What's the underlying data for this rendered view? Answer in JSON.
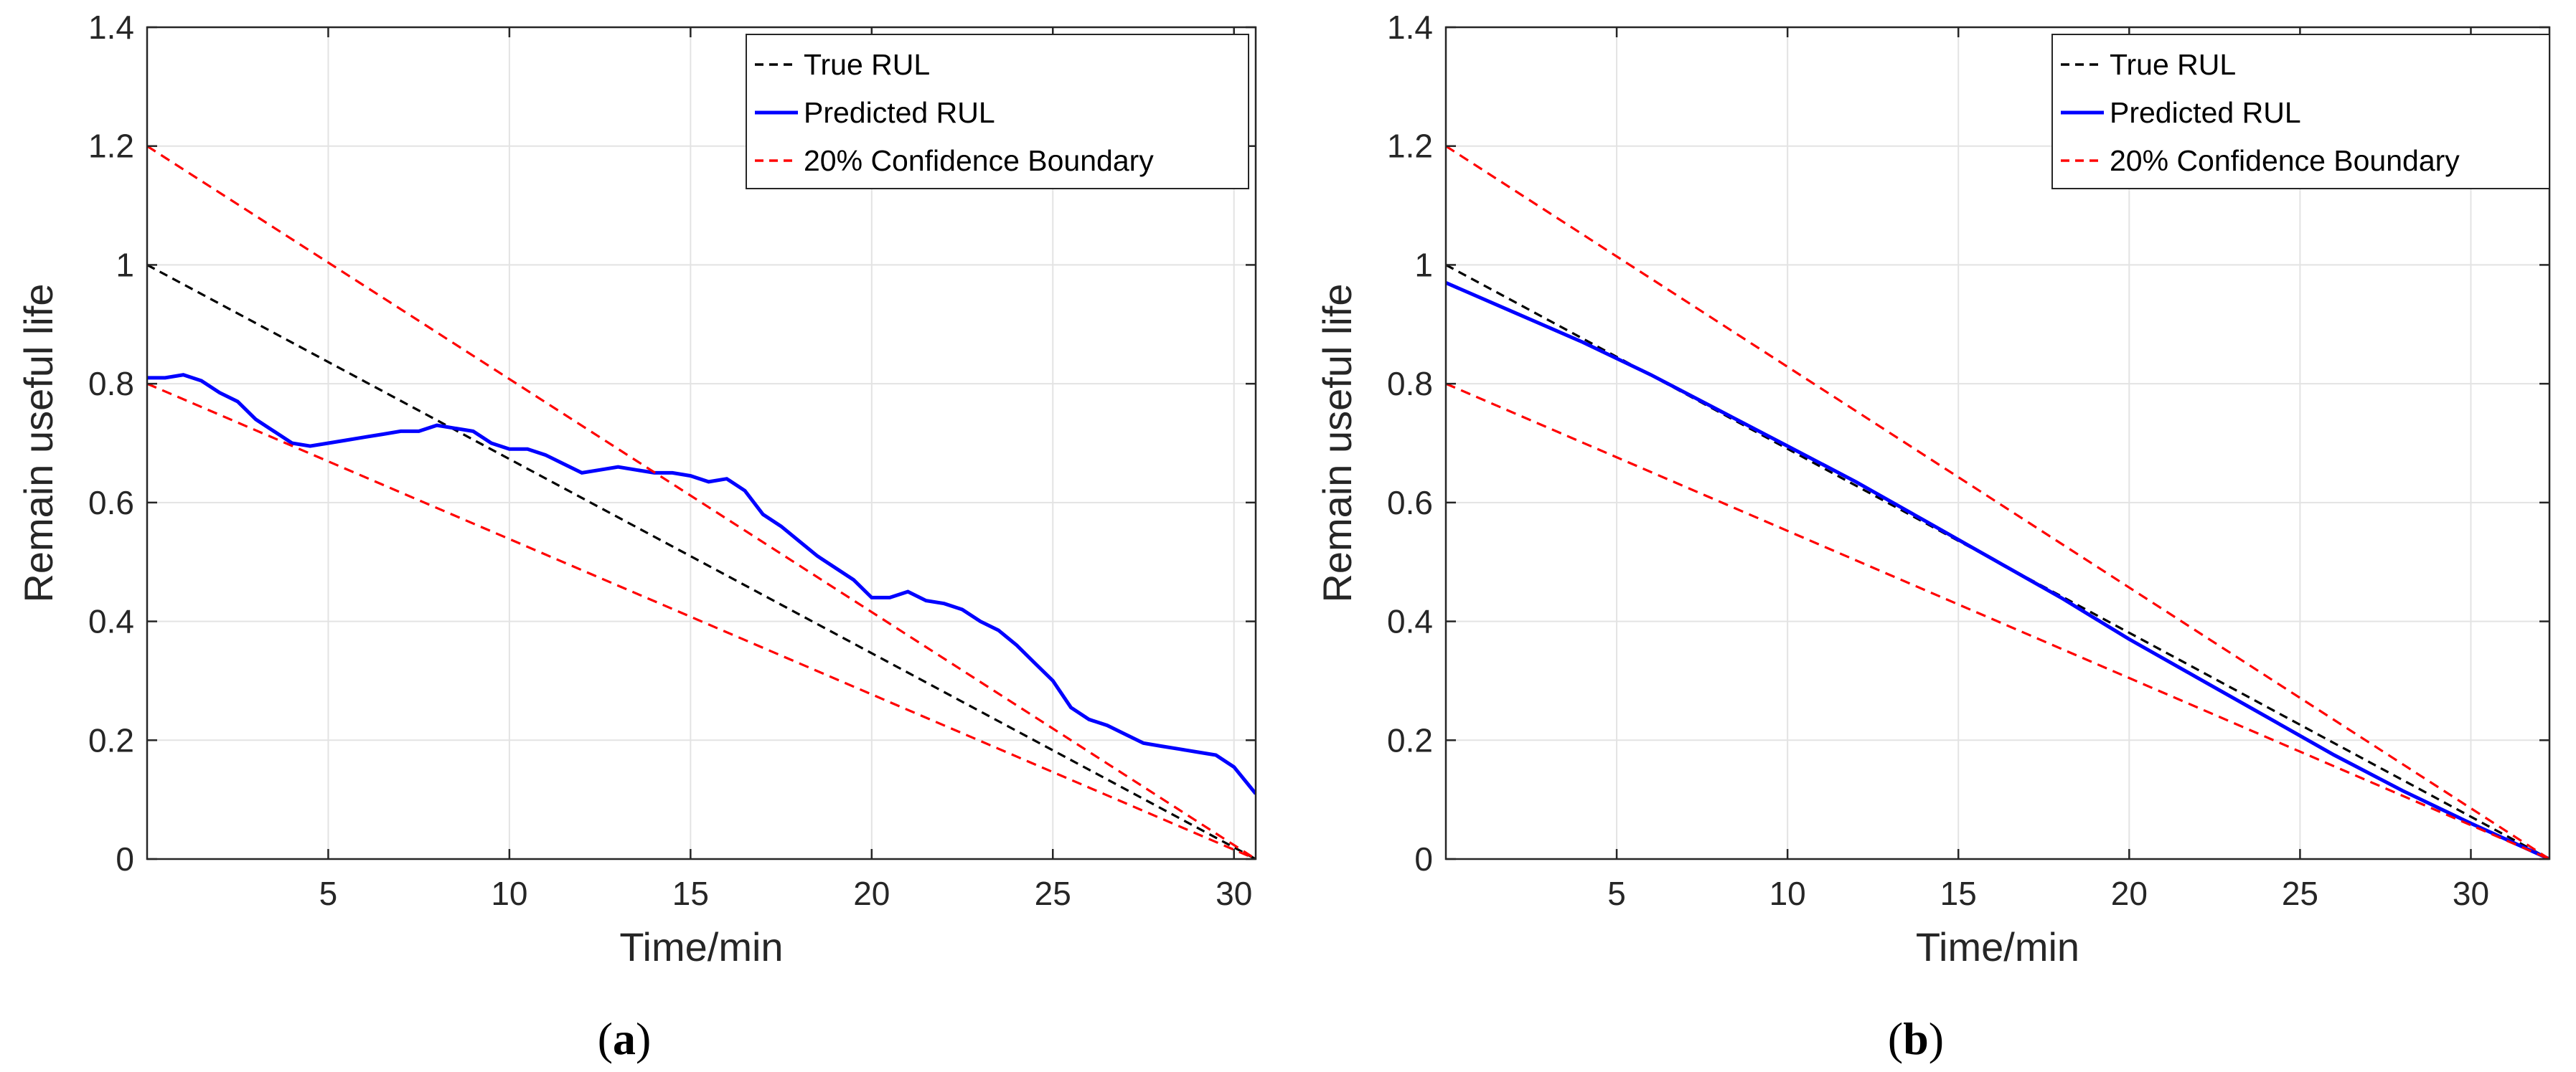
{
  "chart_data": [
    {
      "type": "line",
      "caption": "a",
      "xlabel": "Time/min",
      "ylabel": "Remain useful life",
      "xlim": [
        0,
        30.6
      ],
      "ylim": [
        0,
        1.4
      ],
      "xticks": [
        5,
        10,
        15,
        20,
        25,
        30
      ],
      "yticks": [
        0,
        0.2,
        0.4,
        0.6,
        0.8,
        1,
        1.2,
        1.4
      ],
      "ytick_labels": [
        "0",
        "0.2",
        "0.4",
        "0.6",
        "0.8",
        "1",
        "1.2",
        "1.4"
      ],
      "grid": true,
      "legend_position": "top-right",
      "series": [
        {
          "name": "True RUL",
          "color": "#000000",
          "style": "dashed",
          "x": [
            0,
            30.6
          ],
          "y": [
            1.0,
            0.0
          ]
        },
        {
          "name": "Predicted RUL",
          "color": "#0000ff",
          "style": "solid",
          "x": [
            0,
            0.5,
            1,
            1.5,
            2,
            2.5,
            3,
            3.5,
            4,
            4.5,
            5,
            5.5,
            6,
            6.5,
            7,
            7.5,
            8,
            8.5,
            9,
            9.5,
            10,
            10.5,
            11,
            11.5,
            12,
            12.5,
            13,
            13.5,
            14,
            14.5,
            15,
            15.5,
            16,
            16.5,
            17,
            17.5,
            18,
            18.5,
            19,
            19.5,
            20,
            20.5,
            21,
            21.5,
            22,
            22.5,
            23,
            23.5,
            24,
            24.5,
            25,
            25.5,
            26,
            26.5,
            27,
            27.5,
            28,
            28.5,
            29,
            29.5,
            30,
            30.6
          ],
          "y": [
            0.81,
            0.81,
            0.815,
            0.805,
            0.785,
            0.77,
            0.74,
            0.72,
            0.7,
            0.695,
            0.7,
            0.705,
            0.71,
            0.715,
            0.72,
            0.72,
            0.73,
            0.725,
            0.72,
            0.7,
            0.69,
            0.69,
            0.68,
            0.665,
            0.65,
            0.655,
            0.66,
            0.655,
            0.65,
            0.65,
            0.645,
            0.635,
            0.64,
            0.62,
            0.58,
            0.56,
            0.535,
            0.51,
            0.49,
            0.47,
            0.44,
            0.44,
            0.45,
            0.435,
            0.43,
            0.42,
            0.4,
            0.385,
            0.36,
            0.33,
            0.3,
            0.255,
            0.235,
            0.225,
            0.21,
            0.195,
            0.19,
            0.185,
            0.18,
            0.175,
            0.155,
            0.11
          ]
        },
        {
          "name": "20% Confidence Boundary",
          "color": "#ff0000",
          "style": "dashed",
          "x": [
            0,
            30.6
          ],
          "y": [
            1.2,
            0.0
          ]
        },
        {
          "name": "",
          "color": "#ff0000",
          "style": "dashed",
          "x": [
            0,
            30.6
          ],
          "y": [
            0.8,
            0.0
          ]
        }
      ]
    },
    {
      "type": "line",
      "caption": "b",
      "xlabel": "Time/min",
      "ylabel": "Remain useful life",
      "xlim": [
        0,
        32.3
      ],
      "ylim": [
        0,
        1.4
      ],
      "xticks": [
        5,
        10,
        15,
        20,
        25,
        30
      ],
      "yticks": [
        0,
        0.2,
        0.4,
        0.6,
        0.8,
        1,
        1.2,
        1.4
      ],
      "ytick_labels": [
        "0",
        "0.2",
        "0.4",
        "0.6",
        "0.8",
        "1",
        "1.2",
        "1.4"
      ],
      "grid": true,
      "legend_position": "top-right",
      "series": [
        {
          "name": "True RUL",
          "color": "#000000",
          "style": "dashed",
          "x": [
            0,
            32.3
          ],
          "y": [
            1.0,
            0.0
          ]
        },
        {
          "name": "Predicted RUL",
          "color": "#0000ff",
          "style": "solid",
          "x": [
            0,
            2,
            4,
            6,
            8,
            10,
            12,
            14,
            16,
            18,
            20,
            22,
            24,
            26,
            28,
            30,
            32.3
          ],
          "y": [
            0.97,
            0.92,
            0.87,
            0.815,
            0.755,
            0.695,
            0.635,
            0.57,
            0.505,
            0.44,
            0.37,
            0.305,
            0.24,
            0.175,
            0.115,
            0.06,
            0.0
          ]
        },
        {
          "name": "20% Confidence Boundary",
          "color": "#ff0000",
          "style": "dashed",
          "x": [
            0,
            32.3
          ],
          "y": [
            1.2,
            0.0
          ]
        },
        {
          "name": "",
          "color": "#ff0000",
          "style": "dashed",
          "x": [
            0,
            32.3
          ],
          "y": [
            0.8,
            0.0
          ]
        }
      ]
    }
  ]
}
